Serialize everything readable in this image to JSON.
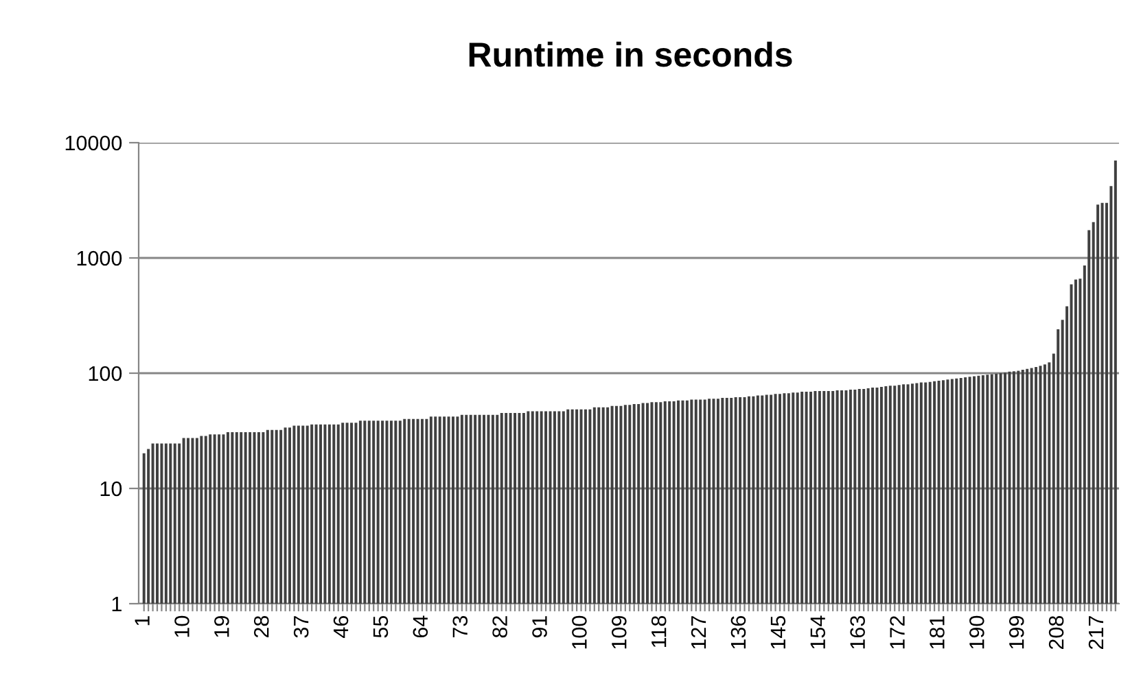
{
  "chart_data": {
    "type": "bar",
    "title": "Runtime in seconds",
    "categories": [
      "1",
      null,
      null,
      null,
      null,
      null,
      null,
      null,
      null,
      "10",
      null,
      null,
      null,
      null,
      null,
      null,
      null,
      null,
      "19",
      null,
      null,
      null,
      null,
      null,
      null,
      null,
      null,
      "28",
      null,
      null,
      null,
      null,
      null,
      null,
      null,
      null,
      "37",
      null,
      null,
      null,
      null,
      null,
      null,
      null,
      null,
      "46",
      null,
      null,
      null,
      null,
      null,
      null,
      null,
      null,
      "55",
      null,
      null,
      null,
      null,
      null,
      null,
      null,
      null,
      "64",
      null,
      null,
      null,
      null,
      null,
      null,
      null,
      null,
      "73",
      null,
      null,
      null,
      null,
      null,
      null,
      null,
      null,
      "82",
      null,
      null,
      null,
      null,
      null,
      null,
      null,
      null,
      "91",
      null,
      null,
      null,
      null,
      null,
      null,
      null,
      null,
      "100",
      null,
      null,
      null,
      null,
      null,
      null,
      null,
      null,
      "109",
      null,
      null,
      null,
      null,
      null,
      null,
      null,
      null,
      "118",
      null,
      null,
      null,
      null,
      null,
      null,
      null,
      null,
      "127",
      null,
      null,
      null,
      null,
      null,
      null,
      null,
      null,
      "136",
      null,
      null,
      null,
      null,
      null,
      null,
      null,
      null,
      "145",
      null,
      null,
      null,
      null,
      null,
      null,
      null,
      null,
      "154",
      null,
      null,
      null,
      null,
      null,
      null,
      null,
      null,
      "163",
      null,
      null,
      null,
      null,
      null,
      null,
      null,
      null,
      "172",
      null,
      null,
      null,
      null,
      null,
      null,
      null,
      null,
      "181",
      null,
      null,
      null,
      null,
      null,
      null,
      null,
      null,
      "190",
      null,
      null,
      null,
      null,
      null,
      null,
      null,
      null,
      "199",
      null,
      null,
      null,
      null,
      null,
      null,
      null,
      null,
      "208",
      null,
      null,
      null,
      null,
      null,
      null,
      null,
      null,
      "217",
      null,
      null,
      null,
      null
    ],
    "values": [
      20.2,
      22,
      24.5,
      24.5,
      24.5,
      24.5,
      24.5,
      24.5,
      24.5,
      27.4,
      27.4,
      27.4,
      27.4,
      28.5,
      28.5,
      29.4,
      29.4,
      29.4,
      29.4,
      30.8,
      30.8,
      30.8,
      30.8,
      30.8,
      30.8,
      30.8,
      30.8,
      30.8,
      32.2,
      32.2,
      32.2,
      32.2,
      33.7,
      33.7,
      35,
      35,
      35,
      35,
      35.9,
      35.9,
      35.9,
      35.9,
      35.9,
      35.9,
      35.9,
      37.2,
      37.2,
      37.2,
      37.2,
      38.7,
      38.7,
      38.7,
      38.7,
      38.7,
      38.7,
      38.7,
      38.7,
      38.7,
      38.7,
      40.1,
      40.1,
      40.1,
      40.1,
      40.1,
      40.1,
      42,
      42,
      42,
      42,
      42,
      42,
      42,
      43.5,
      43.5,
      43.5,
      43.5,
      43.5,
      43.5,
      43.5,
      43.5,
      43.5,
      45.2,
      45.2,
      45.2,
      45.2,
      45.2,
      45.2,
      46.8,
      46.8,
      46.8,
      46.8,
      46.8,
      46.8,
      46.8,
      46.8,
      46.8,
      48.6,
      48.6,
      48.6,
      48.6,
      48.6,
      48.6,
      50.5,
      50.5,
      50.5,
      50.5,
      52,
      52,
      52,
      53,
      53,
      54,
      54,
      55,
      55,
      56,
      56,
      56,
      57,
      57,
      57,
      58,
      58,
      58,
      59,
      59,
      59,
      59,
      60,
      60,
      60,
      61,
      61,
      61,
      62,
      62,
      62,
      63,
      63,
      64,
      64,
      65,
      65,
      66,
      66,
      67,
      67,
      68,
      68,
      69,
      69,
      69,
      70,
      70,
      70,
      70,
      70,
      71,
      71,
      71,
      72,
      72,
      73,
      73,
      74,
      75,
      75,
      76,
      77,
      78,
      78,
      79,
      80,
      80,
      81,
      82,
      83,
      83,
      84,
      85,
      86,
      87,
      88,
      89,
      90,
      91,
      92,
      93,
      94,
      95,
      96,
      97,
      98,
      99,
      100,
      101,
      103,
      104,
      105,
      107,
      109,
      111,
      113,
      116,
      119,
      124,
      148,
      240,
      290,
      380,
      590,
      650,
      660,
      860,
      1740,
      2050,
      2900,
      3000,
      3000,
      4200,
      7000
    ],
    "color": "#404040",
    "log": true,
    "ylim": [
      1,
      10000
    ],
    "yticks": [
      1,
      10,
      100,
      1000,
      10000
    ],
    "grid": "y"
  }
}
